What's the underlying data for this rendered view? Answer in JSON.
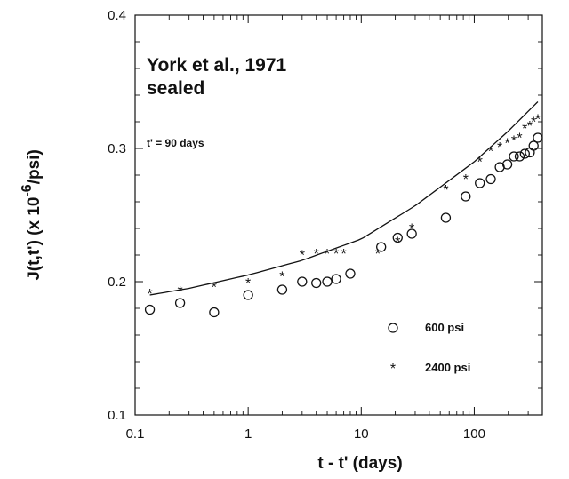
{
  "chart_data": {
    "type": "scatter",
    "x_scale": "log",
    "y_scale": "linear",
    "xlim": [
      0.1,
      400
    ],
    "ylim": [
      0.1,
      0.4
    ],
    "x_ticks": [
      0.1,
      1,
      10,
      100
    ],
    "x_tick_labels": [
      "0.1",
      "1",
      "10",
      "100"
    ],
    "y_ticks": [
      0.1,
      0.2,
      0.3,
      0.4
    ],
    "y_tick_labels": [
      "0.1",
      "0.2",
      "0.3",
      "0.4"
    ],
    "xlabel": "t - t' (days)",
    "ylabel_main": "J(t,t') (x 10",
    "ylabel_sup": "-6",
    "ylabel_end": "/psi)",
    "annotations": {
      "line1": "York et al., 1971",
      "line2": "sealed",
      "line3": "t' = 90 days"
    },
    "legend_position": "bottom-right",
    "series": [
      {
        "name": "600 psi",
        "marker": "circle",
        "points": [
          [
            0.135,
            0.179
          ],
          [
            0.25,
            0.184
          ],
          [
            0.5,
            0.177
          ],
          [
            1.0,
            0.19
          ],
          [
            2.0,
            0.194
          ],
          [
            3.0,
            0.2
          ],
          [
            4.0,
            0.199
          ],
          [
            5.0,
            0.2
          ],
          [
            6.0,
            0.202
          ],
          [
            8.0,
            0.206
          ],
          [
            15.0,
            0.226
          ],
          [
            21.0,
            0.233
          ],
          [
            28.0,
            0.236
          ],
          [
            56.0,
            0.248
          ],
          [
            84.0,
            0.264
          ],
          [
            112.0,
            0.274
          ],
          [
            140.0,
            0.277
          ],
          [
            168.0,
            0.286
          ],
          [
            196.0,
            0.288
          ],
          [
            224.0,
            0.294
          ],
          [
            252.0,
            0.294
          ],
          [
            280.0,
            0.296
          ],
          [
            310.0,
            0.297
          ],
          [
            335.0,
            0.302
          ],
          [
            365.0,
            0.308
          ]
        ]
      },
      {
        "name": "2400 psi",
        "marker": "star",
        "points": [
          [
            0.135,
            0.192
          ],
          [
            0.25,
            0.194
          ],
          [
            0.5,
            0.197
          ],
          [
            1.0,
            0.2
          ],
          [
            2.0,
            0.205
          ],
          [
            3.0,
            0.221
          ],
          [
            4.0,
            0.222
          ],
          [
            5.0,
            0.222
          ],
          [
            6.0,
            0.222
          ],
          [
            7.0,
            0.222
          ],
          [
            14.0,
            0.222
          ],
          [
            21.0,
            0.231
          ],
          [
            28.0,
            0.241
          ],
          [
            56.0,
            0.27
          ],
          [
            84.0,
            0.278
          ],
          [
            112.0,
            0.291
          ],
          [
            140.0,
            0.299
          ],
          [
            168.0,
            0.302
          ],
          [
            196.0,
            0.305
          ],
          [
            224.0,
            0.307
          ],
          [
            252.0,
            0.309
          ],
          [
            280.0,
            0.316
          ],
          [
            310.0,
            0.318
          ],
          [
            335.0,
            0.321
          ],
          [
            365.0,
            0.323
          ]
        ]
      },
      {
        "marker": "none",
        "style": "line",
        "points": [
          [
            0.135,
            0.19
          ],
          [
            0.3,
            0.195
          ],
          [
            1.0,
            0.205
          ],
          [
            3.0,
            0.216
          ],
          [
            10.0,
            0.232
          ],
          [
            30.0,
            0.257
          ],
          [
            100.0,
            0.29
          ],
          [
            200.0,
            0.313
          ],
          [
            365.0,
            0.335
          ]
        ]
      }
    ]
  }
}
